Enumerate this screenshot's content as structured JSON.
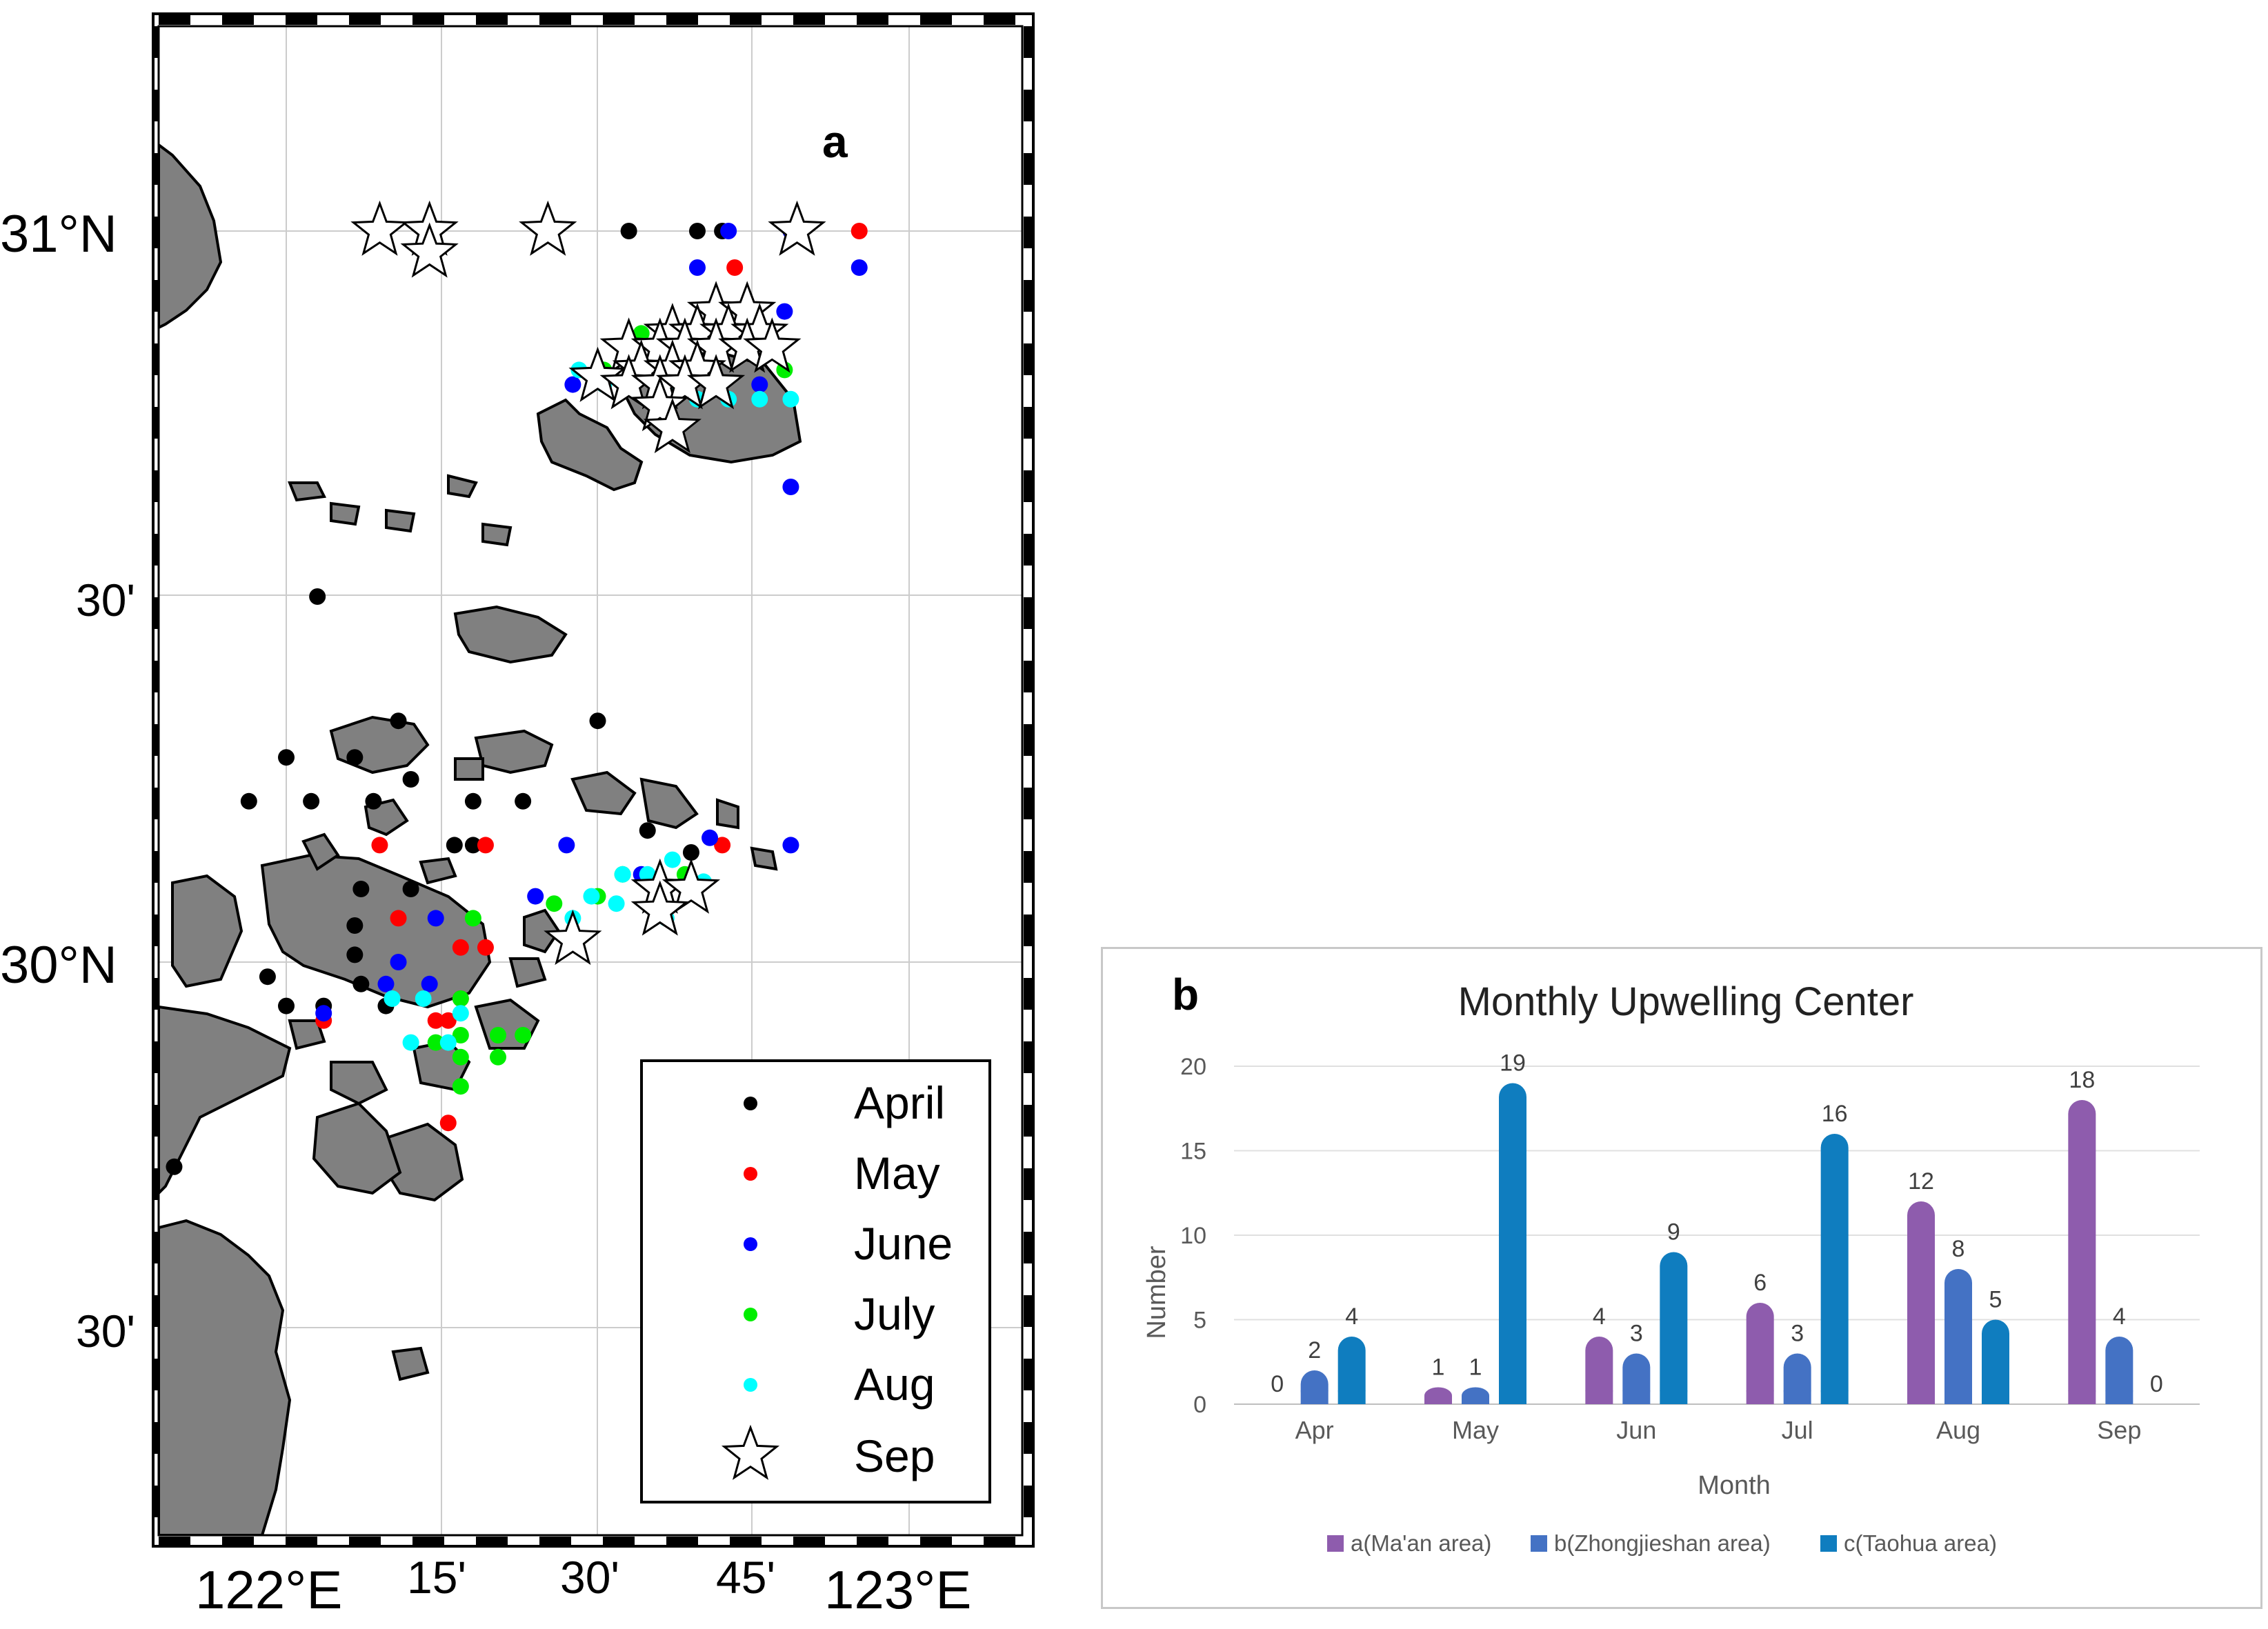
{
  "map": {
    "panel_label": "a",
    "lat_labels": [
      "31°N",
      "30'",
      "30°N",
      "30'"
    ],
    "lon_labels": [
      "122°E",
      "15'",
      "30'",
      "45'",
      "123°E"
    ],
    "legend": [
      {
        "label": "April",
        "color": "#000000",
        "marker": "dot"
      },
      {
        "label": "May",
        "color": "#ff0000",
        "marker": "dot"
      },
      {
        "label": "June",
        "color": "#0000ff",
        "marker": "dot"
      },
      {
        "label": "July",
        "color": "#00ee00",
        "marker": "dot"
      },
      {
        "label": "Aug",
        "color": "#00ffff",
        "marker": "dot"
      },
      {
        "label": "Sep",
        "color": "#ffffff",
        "marker": "star"
      }
    ],
    "stations": {
      "April": [
        [
          122.7,
          31.0
        ],
        [
          122.55,
          31.0
        ],
        [
          122.66,
          31.0
        ],
        [
          122.81,
          31.0
        ],
        [
          122.05,
          30.5
        ],
        [
          122.18,
          30.33
        ],
        [
          122.0,
          30.28
        ],
        [
          122.11,
          30.28
        ],
        [
          122.2,
          30.25
        ],
        [
          122.3,
          30.22
        ],
        [
          122.38,
          30.22
        ],
        [
          122.04,
          30.22
        ],
        [
          121.94,
          30.22
        ],
        [
          122.14,
          30.22
        ],
        [
          122.27,
          30.16
        ],
        [
          122.12,
          30.1
        ],
        [
          122.2,
          30.1
        ],
        [
          122.3,
          30.16
        ],
        [
          122.5,
          30.33
        ],
        [
          122.58,
          30.18
        ],
        [
          122.65,
          30.15
        ],
        [
          122.11,
          30.05
        ],
        [
          122.11,
          30.01
        ],
        [
          122.12,
          29.97
        ],
        [
          121.97,
          29.98
        ],
        [
          122.0,
          29.94
        ],
        [
          122.06,
          29.94
        ],
        [
          122.16,
          29.94
        ],
        [
          121.82,
          29.72
        ]
      ],
      "May": [
        [
          122.92,
          31.0
        ],
        [
          122.72,
          30.95
        ],
        [
          122.32,
          30.16
        ],
        [
          122.15,
          30.16
        ],
        [
          122.7,
          30.16
        ],
        [
          122.18,
          30.06
        ],
        [
          122.32,
          30.02
        ],
        [
          122.28,
          30.02
        ],
        [
          122.28,
          29.95
        ],
        [
          122.22,
          29.95
        ],
        [
          122.24,
          29.92
        ],
        [
          122.06,
          29.92
        ],
        [
          122.26,
          29.92
        ],
        [
          122.26,
          29.78
        ]
      ],
      "June": [
        [
          122.71,
          31.0
        ],
        [
          122.81,
          31.0
        ],
        [
          122.92,
          30.95
        ],
        [
          122.66,
          30.95
        ],
        [
          122.8,
          30.89
        ],
        [
          122.46,
          30.79
        ],
        [
          122.76,
          30.79
        ],
        [
          122.81,
          30.65
        ],
        [
          122.68,
          30.17
        ],
        [
          122.81,
          30.16
        ],
        [
          122.45,
          30.16
        ],
        [
          122.57,
          30.12
        ],
        [
          122.4,
          30.09
        ],
        [
          122.24,
          30.06
        ],
        [
          122.06,
          29.93
        ],
        [
          122.16,
          29.97
        ],
        [
          122.23,
          29.97
        ],
        [
          122.18,
          30.0
        ]
      ],
      "July": [
        [
          122.57,
          30.86
        ],
        [
          122.51,
          30.81
        ],
        [
          122.8,
          30.81
        ],
        [
          122.64,
          30.12
        ],
        [
          122.54,
          30.12
        ],
        [
          122.5,
          30.09
        ],
        [
          122.43,
          30.08
        ],
        [
          122.3,
          30.06
        ],
        [
          122.28,
          29.95
        ],
        [
          122.24,
          29.89
        ],
        [
          122.28,
          29.9
        ],
        [
          122.34,
          29.9
        ],
        [
          122.38,
          29.9
        ],
        [
          122.34,
          29.87
        ],
        [
          122.28,
          29.87
        ],
        [
          122.28,
          29.83
        ]
      ],
      "Aug": [
        [
          122.62,
          30.79
        ],
        [
          122.66,
          30.77
        ],
        [
          122.71,
          30.77
        ],
        [
          122.76,
          30.77
        ],
        [
          122.81,
          30.77
        ],
        [
          122.57,
          30.81
        ],
        [
          122.62,
          30.81
        ],
        [
          122.51,
          30.79
        ],
        [
          122.47,
          30.81
        ],
        [
          122.62,
          30.14
        ],
        [
          122.67,
          30.11
        ],
        [
          122.54,
          30.12
        ],
        [
          122.58,
          30.12
        ],
        [
          122.53,
          30.08
        ],
        [
          122.49,
          30.09
        ],
        [
          122.46,
          30.06
        ],
        [
          122.61,
          30.06
        ],
        [
          122.28,
          29.93
        ],
        [
          122.22,
          29.95
        ],
        [
          122.17,
          29.95
        ],
        [
          122.26,
          29.89
        ],
        [
          122.2,
          29.89
        ]
      ],
      "Sep": [
        [
          122.15,
          31.0
        ],
        [
          122.23,
          31.0
        ],
        [
          122.23,
          30.97
        ],
        [
          122.42,
          31.0
        ],
        [
          122.82,
          31.0
        ],
        [
          122.69,
          30.89
        ],
        [
          122.74,
          30.89
        ],
        [
          122.62,
          30.86
        ],
        [
          122.66,
          30.86
        ],
        [
          122.71,
          30.86
        ],
        [
          122.76,
          30.86
        ],
        [
          122.55,
          30.84
        ],
        [
          122.6,
          30.84
        ],
        [
          122.64,
          30.84
        ],
        [
          122.69,
          30.84
        ],
        [
          122.74,
          30.84
        ],
        [
          122.78,
          30.84
        ],
        [
          122.57,
          30.81
        ],
        [
          122.62,
          30.81
        ],
        [
          122.66,
          30.81
        ],
        [
          122.5,
          30.8
        ],
        [
          122.55,
          30.79
        ],
        [
          122.6,
          30.79
        ],
        [
          122.64,
          30.79
        ],
        [
          122.69,
          30.79
        ],
        [
          122.6,
          30.76
        ],
        [
          122.62,
          30.73
        ],
        [
          122.6,
          30.1
        ],
        [
          122.65,
          30.1
        ],
        [
          122.6,
          30.07
        ],
        [
          122.46,
          30.03
        ]
      ]
    }
  },
  "chart_data": {
    "type": "bar",
    "panel_label": "b",
    "title": "Monthly Upwelling Center",
    "xlabel": "Month",
    "ylabel": "Number",
    "categories": [
      "Apr",
      "May",
      "Jun",
      "Jul",
      "Aug",
      "Sep"
    ],
    "ylim": [
      0,
      20
    ],
    "yticks": [
      "0",
      "5",
      "10",
      "15",
      "20"
    ],
    "series": [
      {
        "name": "a(Ma'an area)",
        "color": "#8e5cad",
        "values": [
          0,
          1,
          4,
          6,
          12,
          18
        ]
      },
      {
        "name": "b(Zhongjieshan area)",
        "color": "#4472c4",
        "values": [
          2,
          1,
          3,
          3,
          8,
          4
        ]
      },
      {
        "name": "c(Taohua area)",
        "color": "#0f7dbf",
        "values": [
          4,
          19,
          9,
          16,
          5,
          0
        ]
      }
    ],
    "legend_position": "bottom",
    "grid": true
  }
}
